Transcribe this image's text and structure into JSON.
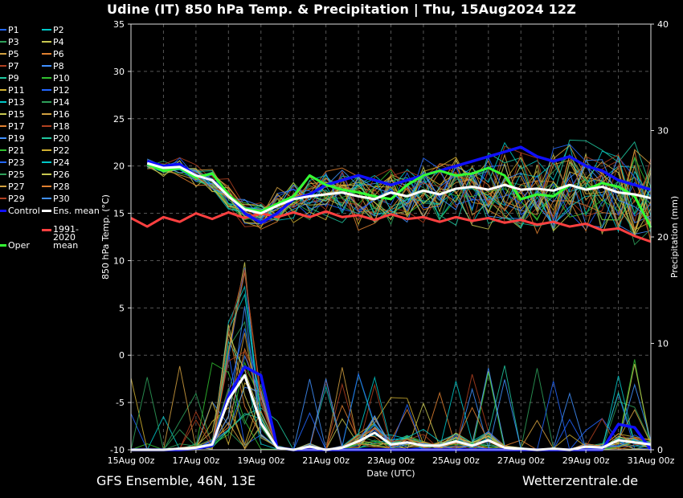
{
  "title": "Udine  (IT)  850 hPa Temp. & Precipitation | Thu, 15Aug2024 12Z",
  "footer": {
    "model": "GFS Ensemble, 46N, 13E",
    "site": "Wetterzentrale.de"
  },
  "colors": {
    "control": "#1010ff",
    "ens_mean": "#ffffff",
    "climate": "#ff4040",
    "oper": "#33ff33",
    "members": [
      "#2266ff",
      "#00c8c8",
      "#2ea05a",
      "#c8c850",
      "#d2a040",
      "#e08030",
      "#b04020",
      "#4090ff",
      "#20c8a0",
      "#30c030",
      "#d0b030"
    ]
  },
  "legend": {
    "members": [
      "P1",
      "P2",
      "P3",
      "P4",
      "P5",
      "P6",
      "P7",
      "P8",
      "P9",
      "P10",
      "P11",
      "P12",
      "P13",
      "P14",
      "P15",
      "P16",
      "P17",
      "P18",
      "P19",
      "P20",
      "P21",
      "P22",
      "P23",
      "P24",
      "P25",
      "P26",
      "P27",
      "P28",
      "P29",
      "P30"
    ],
    "control": "Control",
    "ens_mean": "Ens. mean",
    "climate": "1991-2020 mean",
    "oper": "Oper"
  },
  "chart_data": {
    "type": "line",
    "xlabel": "Date (UTC)",
    "ylabel": "850 hPa Temp. (°C)",
    "y2label": "Precipitation (mm)",
    "xlim": [
      0,
      16
    ],
    "ylim": [
      -10,
      35
    ],
    "y2lim": [
      0,
      40
    ],
    "x_ticks": [
      0,
      2,
      4,
      6,
      8,
      10,
      12,
      14,
      16
    ],
    "x_tick_labels": [
      "15Aug 00z",
      "17Aug 00z",
      "19Aug 00z",
      "21Aug 00z",
      "23Aug 00z",
      "25Aug 00z",
      "27Aug 00z",
      "29Aug 00z",
      "31Aug 00z"
    ],
    "y_ticks": [
      -10,
      -5,
      0,
      5,
      10,
      15,
      20,
      25,
      30,
      35
    ],
    "y2_ticks": [
      0,
      10,
      20,
      30,
      40
    ],
    "grid": true,
    "temperature_series": [
      {
        "name": "Control",
        "x": [
          0.5,
          1,
          1.5,
          2,
          2.5,
          3,
          3.5,
          4,
          4.5,
          5,
          5.5,
          6,
          6.5,
          7,
          7.5,
          8,
          8.5,
          9,
          9.5,
          10,
          10.5,
          11,
          11.5,
          12,
          12.5,
          13,
          13.5,
          14,
          14.5,
          15,
          15.5,
          16
        ],
        "values": [
          20.5,
          20,
          20.2,
          19,
          18.5,
          17,
          15,
          14,
          15,
          16.5,
          17,
          18,
          18.5,
          19,
          18.5,
          18,
          18.5,
          19,
          19.5,
          20,
          20.5,
          21,
          21.5,
          22,
          21,
          20.5,
          21,
          20,
          19.5,
          18.5,
          18,
          17.5
        ]
      },
      {
        "name": "Ens. mean",
        "x": [
          0.5,
          1,
          1.5,
          2,
          2.5,
          3,
          3.5,
          4,
          4.5,
          5,
          5.5,
          6,
          6.5,
          7,
          7.5,
          8,
          8.5,
          9,
          9.5,
          10,
          10.5,
          11,
          11.5,
          12,
          12.5,
          13,
          13.5,
          14,
          14.5,
          15,
          15.5,
          16
        ],
        "values": [
          20.3,
          19.8,
          19.9,
          19,
          18.5,
          16.8,
          15.4,
          15,
          15.8,
          16.5,
          16.8,
          17,
          17.2,
          16.8,
          16.5,
          17.2,
          16.8,
          17.4,
          17,
          17.6,
          17.8,
          17.5,
          18,
          17.5,
          17.6,
          17.4,
          18,
          17.5,
          17.8,
          17.2,
          17,
          16.6
        ]
      },
      {
        "name": "1991-2020 mean",
        "x": [
          0,
          0.5,
          1,
          1.5,
          2,
          2.5,
          3,
          3.5,
          4,
          4.5,
          5,
          5.5,
          6,
          6.5,
          7,
          7.5,
          8,
          8.5,
          9,
          9.5,
          10,
          10.5,
          11,
          11.5,
          12,
          12.5,
          13,
          13.5,
          14,
          14.5,
          15,
          15.5,
          16
        ],
        "values": [
          14.5,
          13.6,
          14.6,
          14.1,
          15,
          14.4,
          15.1,
          14.5,
          15,
          14.6,
          15.1,
          14.6,
          15.2,
          14.6,
          14.8,
          14.3,
          14.9,
          14.4,
          14.6,
          14.1,
          14.6,
          14.2,
          14.5,
          14,
          14.3,
          13.8,
          14.1,
          13.6,
          13.9,
          13.2,
          13.4,
          12.6,
          12
        ]
      },
      {
        "name": "Oper",
        "x": [
          0.5,
          1,
          1.5,
          2,
          2.5,
          3,
          3.5,
          4,
          4.5,
          5,
          5.5,
          6,
          6.5,
          7,
          7.5,
          8,
          8.5,
          9,
          9.5,
          10,
          10.5,
          11,
          11.5,
          12,
          12.5,
          13,
          13.5,
          14,
          14.5,
          15,
          15.5,
          16
        ],
        "values": [
          20.2,
          19.5,
          19.8,
          18.8,
          19.2,
          17,
          15.5,
          15.2,
          16,
          16.8,
          19,
          18,
          17.5,
          17.2,
          16.8,
          16.5,
          18,
          19,
          19.5,
          19,
          19.2,
          19.8,
          19,
          16.5,
          17,
          16.8,
          18,
          17.5,
          18.2,
          17.8,
          16.8,
          13.5
        ]
      }
    ],
    "precipitation_series": [
      {
        "name": "Ens. mean",
        "x": [
          0,
          0.5,
          1,
          1.5,
          2,
          2.5,
          3,
          3.5,
          4,
          4.5,
          5,
          5.5,
          6,
          6.5,
          7,
          7.5,
          8,
          8.5,
          9,
          9.5,
          10,
          10.5,
          11,
          11.5,
          12,
          12.5,
          13,
          13.5,
          14,
          14.5,
          15,
          15.5,
          16
        ],
        "values": [
          0,
          0,
          0,
          0.1,
          0.2,
          0.5,
          4.7,
          7,
          2.5,
          0.2,
          0,
          0.3,
          0,
          0.2,
          0.8,
          1.6,
          0.5,
          0.7,
          0.4,
          0.4,
          0.8,
          0.4,
          0.9,
          0.2,
          0.1,
          0,
          0.1,
          0,
          0.3,
          0.2,
          0.9,
          0.7,
          0.5
        ]
      },
      {
        "name": "Control",
        "x": [
          0,
          0.5,
          1,
          1.5,
          2,
          2.5,
          3,
          3.5,
          4,
          4.5,
          5,
          5.5,
          6,
          6.5,
          7,
          7.5,
          8,
          8.5,
          9,
          9.5,
          10,
          10.5,
          11,
          11.5,
          12,
          12.5,
          13,
          13.5,
          14,
          14.5,
          15,
          15.5,
          16
        ],
        "values": [
          0,
          0,
          0,
          0,
          0.1,
          0.4,
          5,
          7.8,
          7,
          0.2,
          0,
          0,
          0,
          0,
          0,
          0,
          0,
          0,
          0,
          0,
          0,
          0,
          0,
          0,
          0,
          0,
          0,
          0,
          0,
          0,
          2.4,
          2.1,
          0
        ]
      }
    ]
  }
}
